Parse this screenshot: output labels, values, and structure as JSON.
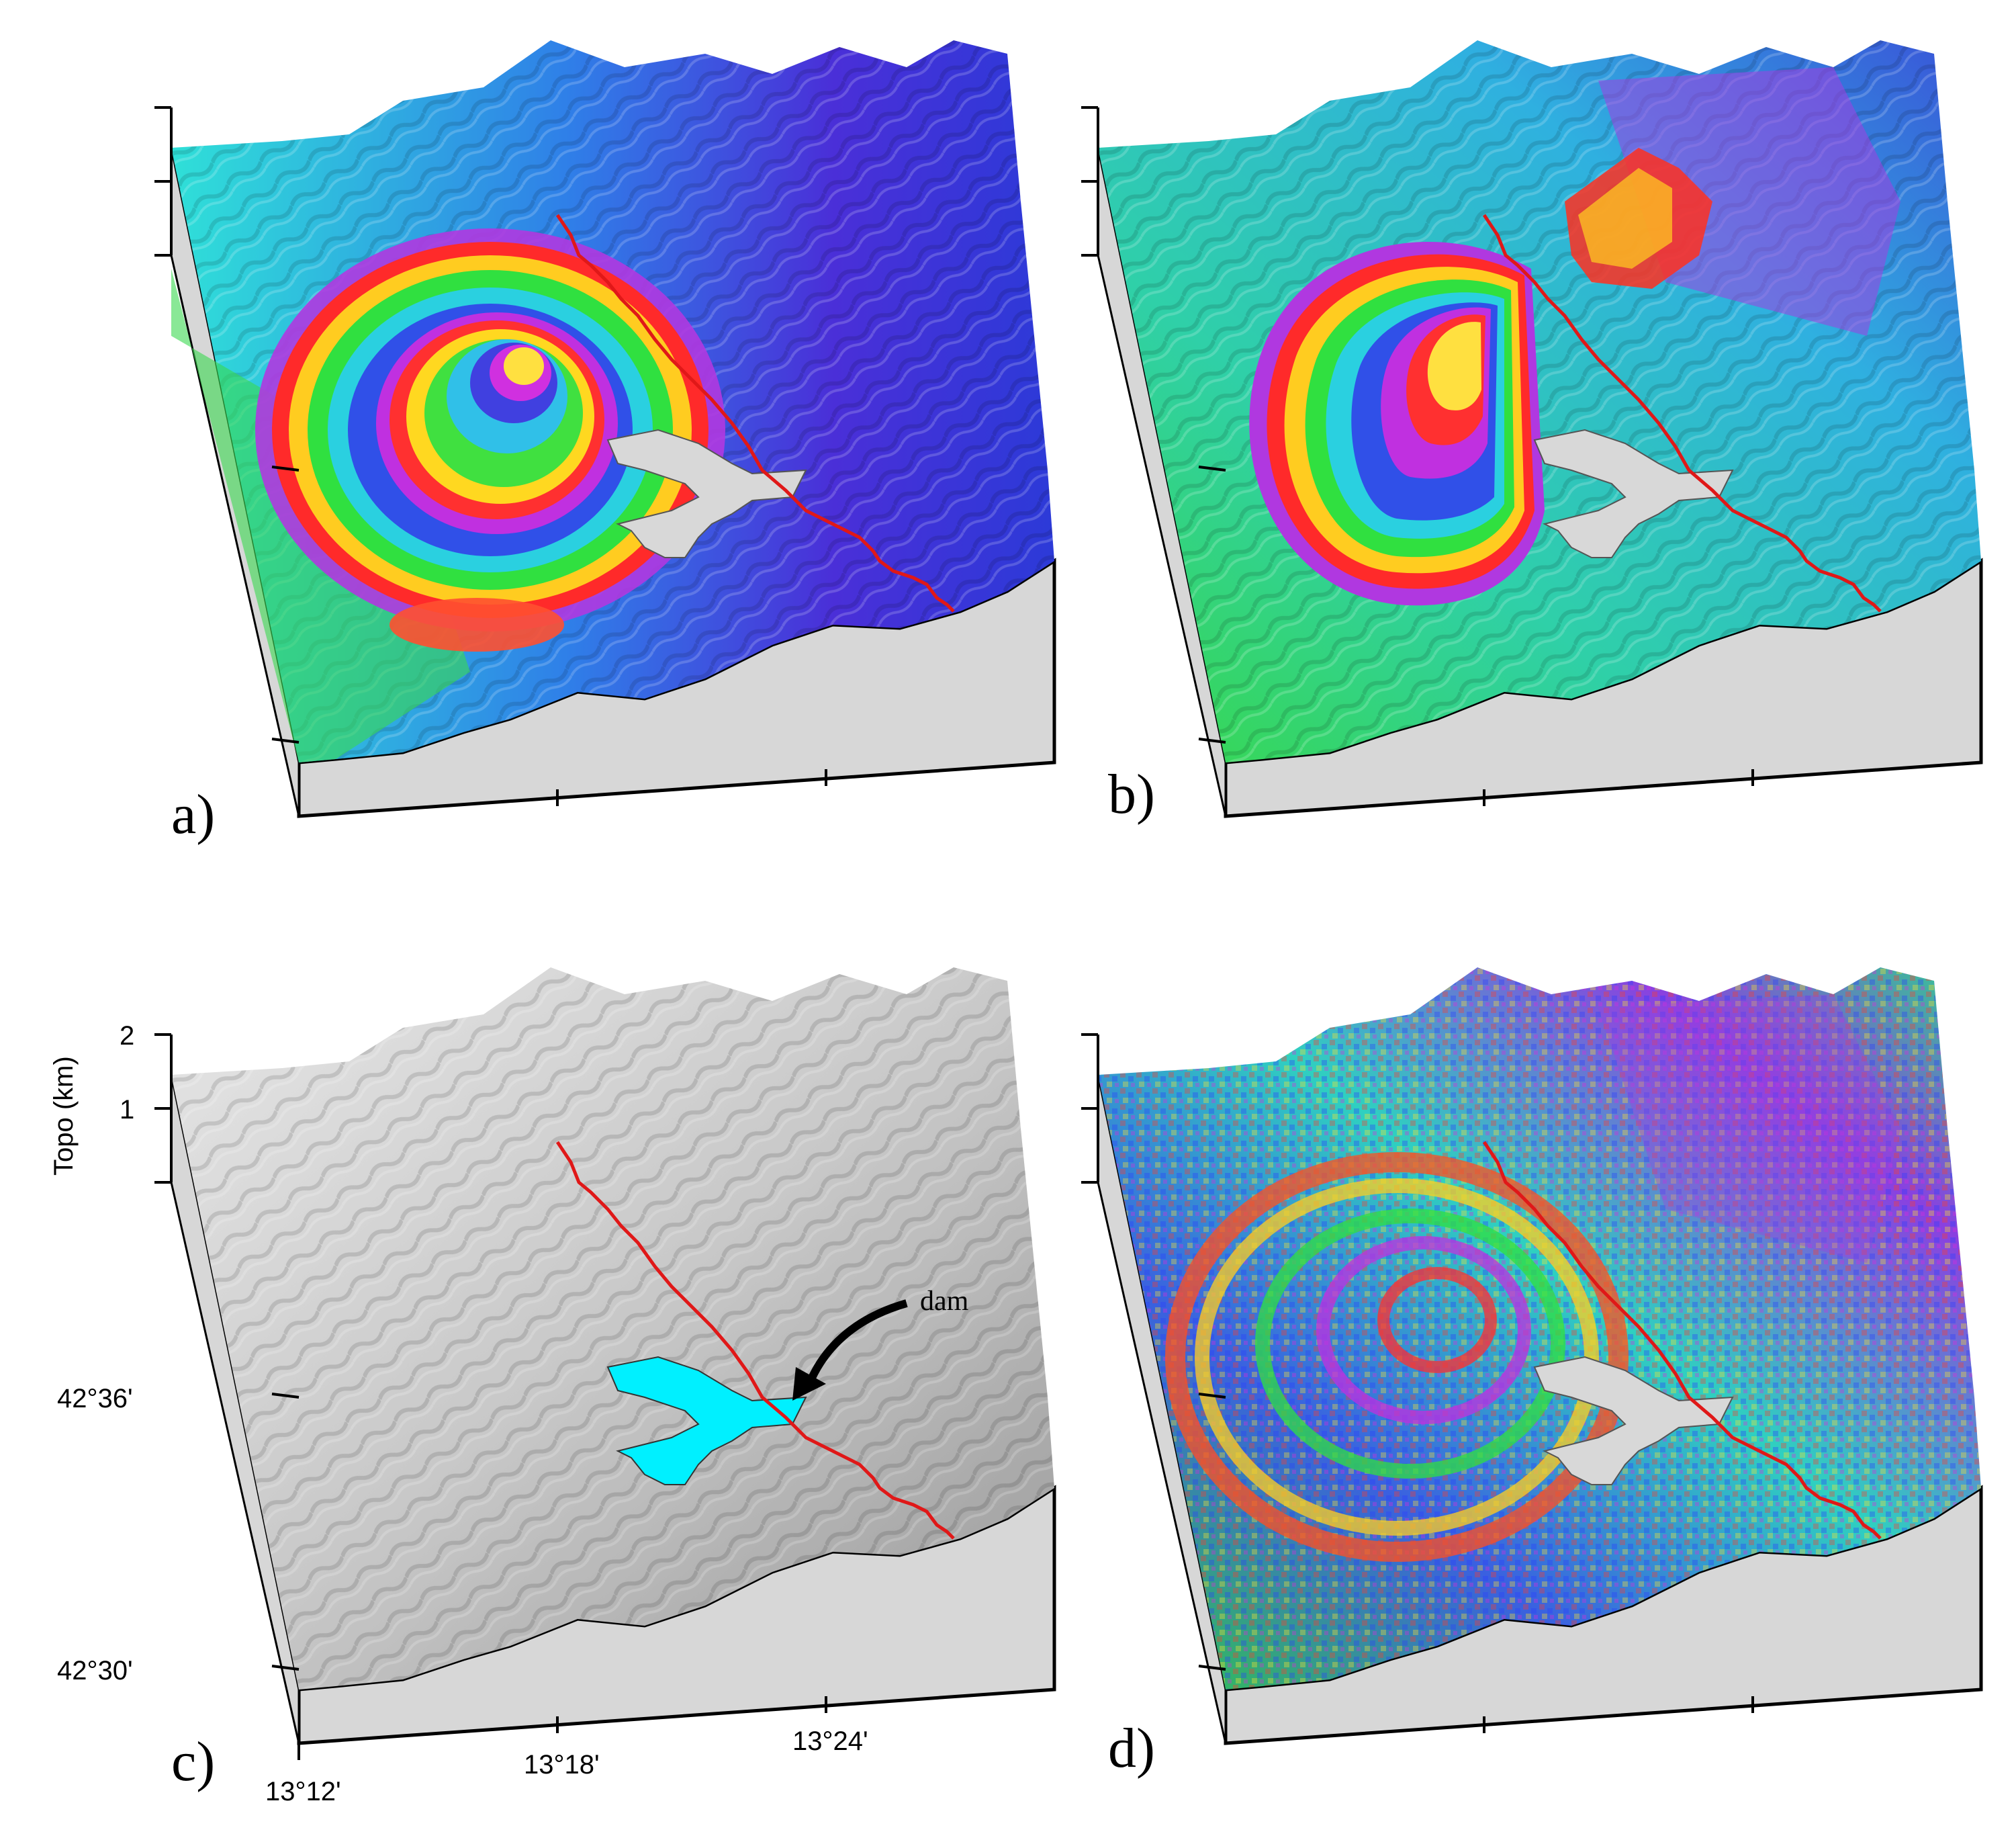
{
  "panels": [
    {
      "label": "a)",
      "style": "interferogram-circular"
    },
    {
      "label": "b)",
      "style": "interferogram-faulted"
    },
    {
      "label": "c)",
      "style": "topography-shaded"
    },
    {
      "label": "d)",
      "style": "interferogram-noisy"
    }
  ],
  "axes": {
    "z_title": "Topo (km)",
    "z_ticks": [
      "2",
      "1"
    ],
    "lat_ticks": [
      "42°36'",
      "42°30'"
    ],
    "lon_ticks": [
      "13°12'",
      "13°18'",
      "13°24'"
    ]
  },
  "annotation": {
    "text": "dam"
  },
  "colors": {
    "fault": "#e01818",
    "lake": "#00f0ff",
    "lake_masked": "#d8d8d8",
    "base_face": "#d7d7d7",
    "outline": "#000000"
  }
}
